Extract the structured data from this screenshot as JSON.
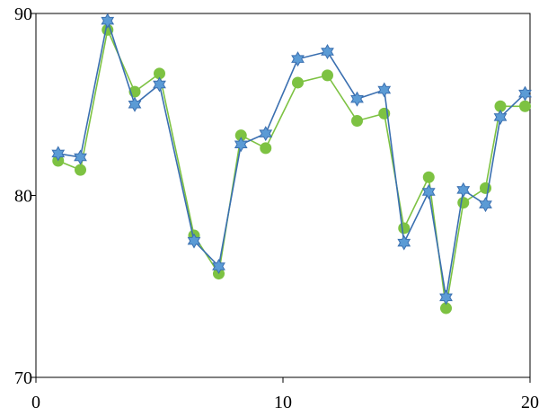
{
  "chart_data": {
    "type": "line",
    "title": "",
    "xlabel": "",
    "ylabel": "",
    "xlim": [
      0,
      20
    ],
    "ylim": [
      70,
      90
    ],
    "x_ticks": [
      0,
      10,
      20
    ],
    "y_ticks": [
      70,
      80,
      90
    ],
    "grid": false,
    "legend": "none",
    "series": [
      {
        "color": "#7dc242",
        "marker": "circle",
        "points": [
          [
            0.9,
            81.9
          ],
          [
            1.8,
            81.4
          ],
          [
            2.9,
            89.1
          ],
          [
            4.0,
            85.7
          ],
          [
            5.0,
            86.7
          ],
          [
            6.4,
            77.8
          ],
          [
            7.4,
            75.7
          ],
          [
            8.3,
            83.3
          ],
          [
            9.3,
            82.6
          ],
          [
            10.6,
            86.2
          ],
          [
            11.8,
            86.6
          ],
          [
            13.0,
            84.1
          ],
          [
            14.1,
            84.5
          ],
          [
            14.9,
            78.2
          ],
          [
            15.9,
            81.0
          ],
          [
            16.6,
            73.8
          ],
          [
            17.3,
            79.6
          ],
          [
            18.2,
            80.4
          ],
          [
            18.8,
            84.9
          ],
          [
            19.8,
            84.9
          ]
        ]
      },
      {
        "color": "#3a6fb0",
        "fill": "#5b9bd5",
        "marker": "star",
        "points": [
          [
            0.9,
            82.3
          ],
          [
            1.8,
            82.1
          ],
          [
            2.9,
            89.6
          ],
          [
            4.0,
            85.0
          ],
          [
            5.0,
            86.1
          ],
          [
            6.4,
            77.5
          ],
          [
            7.4,
            76.1
          ],
          [
            8.3,
            82.8
          ],
          [
            9.3,
            83.4
          ],
          [
            10.6,
            87.5
          ],
          [
            11.8,
            87.9
          ],
          [
            13.0,
            85.3
          ],
          [
            14.1,
            85.8
          ],
          [
            14.9,
            77.4
          ],
          [
            15.9,
            80.2
          ],
          [
            16.6,
            74.4
          ],
          [
            17.3,
            80.3
          ],
          [
            18.2,
            79.5
          ],
          [
            18.8,
            84.3
          ],
          [
            19.8,
            85.6
          ]
        ]
      }
    ]
  }
}
